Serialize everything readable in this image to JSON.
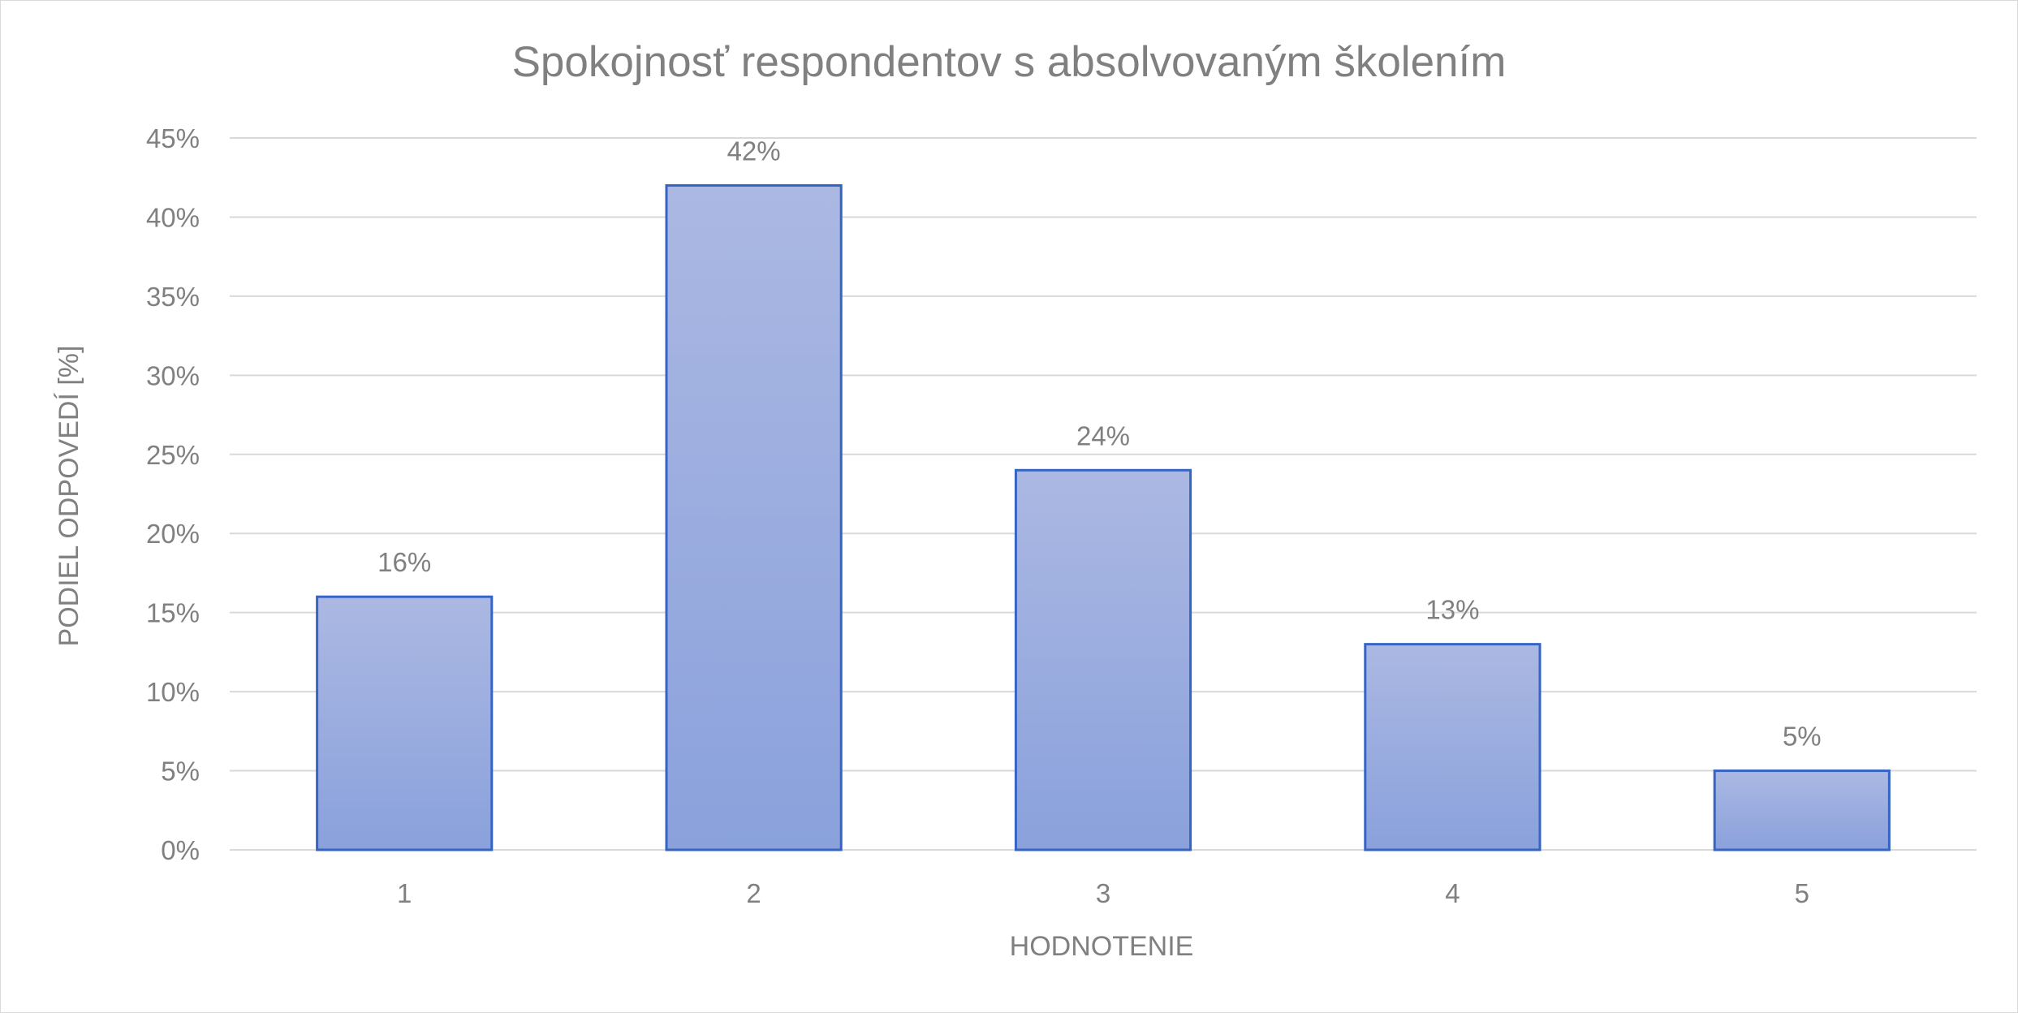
{
  "chart_data": {
    "type": "bar",
    "title": "Spokojnosť respondentov s absolvovaným školením",
    "xlabel": "HODNOTENIE",
    "ylabel": "PODIEL ODPOVEDÍ [%]",
    "categories": [
      "1",
      "2",
      "3",
      "4",
      "5"
    ],
    "values": [
      16,
      42,
      24,
      13,
      5
    ],
    "data_labels": [
      "16%",
      "42%",
      "24%",
      "13%",
      "5%"
    ],
    "ylim": [
      0,
      45
    ],
    "yticks": [
      0,
      5,
      10,
      15,
      20,
      25,
      30,
      35,
      40,
      45
    ],
    "ytick_labels": [
      "0%",
      "5%",
      "10%",
      "15%",
      "20%",
      "25%",
      "30%",
      "35%",
      "40%",
      "45%"
    ],
    "grid": true,
    "legend": "none",
    "colors": {
      "bar_fill_top": "#abb8e2",
      "bar_fill_bottom": "#8aa1dc",
      "bar_border": "#3664c4",
      "gridline": "#d9d9d9",
      "text": "#808080"
    }
  }
}
